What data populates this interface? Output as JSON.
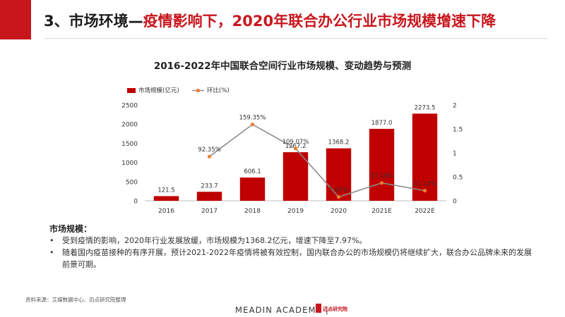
{
  "slide": {
    "title_plain": "3、市场环境—",
    "title_highlight": "疫情影响下，2020年联合办公行业市场规模增速下降",
    "section_label": "市场规模：",
    "bullets": [
      "受到疫情的影响，2020年行业发展放缓，市场规模为1368.2亿元，增速下降至7.97%。",
      "随着国内疫苗接种的有序开展，预计2021-2022年疫情将被有效控制，国内联合办公的市场规模仍将继续扩大，联合办公品牌未来的发展前景可期。"
    ],
    "bullet_symbol": "•",
    "source": "资料来源：艾媒数据中心、迈点研究院整理",
    "footer_brand": "MEADIN ACADEMY |",
    "footer_logo_text": "迈点研究院",
    "accent_color": "#c8161d"
  },
  "chart_data": {
    "type": "bar",
    "title": "2016-2022年中国联合空间行业市场规模、变动趋势与预测",
    "categories": [
      "2016",
      "2017",
      "2018",
      "2019",
      "2020",
      "2021E",
      "2022E"
    ],
    "series": [
      {
        "name": "市场规模(亿元)",
        "kind": "bar",
        "axis": "left",
        "color": "#c00000",
        "values": [
          121.5,
          233.7,
          606.1,
          1267.2,
          1368.2,
          1877.0,
          2273.5
        ],
        "labels": [
          "121.5",
          "233.7",
          "606.1",
          "1267.2",
          "1368.2",
          "1877.0",
          "2273.5"
        ]
      },
      {
        "name": "环比(%)",
        "kind": "line",
        "axis": "right",
        "line_color": "#8c8c8c",
        "marker_color": "#ed7d31",
        "values": [
          null,
          0.9235,
          1.5935,
          1.0907,
          0.0797,
          0.3719,
          0.2112
        ],
        "labels": [
          "",
          "92.35%",
          "159.35%",
          "109.07%",
          "7.97%",
          "37.19%",
          "21.12%"
        ]
      }
    ],
    "y_left": {
      "min": 0,
      "max": 2500,
      "ticks": [
        0,
        500,
        1000,
        1500,
        2000,
        2500
      ]
    },
    "y_right": {
      "min": 0,
      "max": 2,
      "ticks": [
        "0",
        "0.5",
        "1",
        "1.5",
        "2"
      ]
    },
    "legend_position": "top-left",
    "grid": false
  }
}
